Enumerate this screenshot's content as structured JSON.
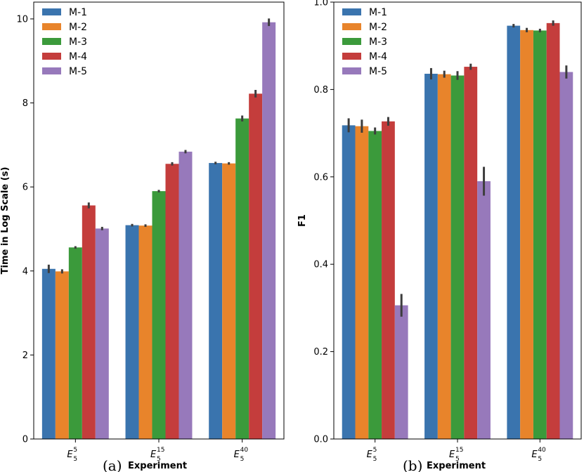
{
  "chart_data": [
    {
      "type": "bar",
      "panel_label": "(a)",
      "xlabel": "Experiment",
      "ylabel": "Time in Log Scale (s)",
      "ylim": [
        0,
        10.4
      ],
      "yticks": [
        "0",
        "2",
        "4",
        "6",
        "8",
        "10"
      ],
      "categories": [
        {
          "base": "E",
          "sub": "5",
          "sup": "5"
        },
        {
          "base": "E",
          "sub": "5",
          "sup": "15"
        },
        {
          "base": "E",
          "sub": "5",
          "sup": "40"
        }
      ],
      "series": [
        {
          "name": "M-1",
          "color": "#3a74ae",
          "values": [
            4.05,
            5.09,
            6.57
          ],
          "err": [
            0.1,
            0.03,
            0.03
          ]
        },
        {
          "name": "M-2",
          "color": "#e8842b",
          "values": [
            3.99,
            5.08,
            6.56
          ],
          "err": [
            0.05,
            0.03,
            0.03
          ]
        },
        {
          "name": "M-3",
          "color": "#3b9a3b",
          "values": [
            4.56,
            5.9,
            7.63
          ],
          "err": [
            0.03,
            0.03,
            0.07
          ]
        },
        {
          "name": "M-4",
          "color": "#c43d3c",
          "values": [
            5.56,
            6.55,
            8.22
          ],
          "err": [
            0.07,
            0.04,
            0.09
          ]
        },
        {
          "name": "M-5",
          "color": "#9779bb",
          "values": [
            5.01,
            6.84,
            9.92
          ],
          "err": [
            0.04,
            0.04,
            0.09
          ]
        }
      ],
      "legend": "top-left",
      "grid": false
    },
    {
      "type": "bar",
      "panel_label": "(b)",
      "xlabel": "Experiment",
      "ylabel": "F1",
      "ylim": [
        0,
        1.0
      ],
      "yticks": [
        "0.0",
        "0.2",
        "0.4",
        "0.6",
        "0.8",
        "1.0"
      ],
      "categories": [
        {
          "base": "E",
          "sub": "5",
          "sup": "5"
        },
        {
          "base": "E",
          "sub": "5",
          "sup": "15"
        },
        {
          "base": "E",
          "sub": "5",
          "sup": "40"
        }
      ],
      "series": [
        {
          "name": "M-1",
          "color": "#3a74ae",
          "values": [
            0.718,
            0.836,
            0.946
          ],
          "err": [
            0.016,
            0.013,
            0.004
          ]
        },
        {
          "name": "M-2",
          "color": "#e8842b",
          "values": [
            0.716,
            0.835,
            0.936
          ],
          "err": [
            0.015,
            0.008,
            0.005
          ]
        },
        {
          "name": "M-3",
          "color": "#3b9a3b",
          "values": [
            0.705,
            0.832,
            0.935
          ],
          "err": [
            0.008,
            0.01,
            0.004
          ]
        },
        {
          "name": "M-4",
          "color": "#c43d3c",
          "values": [
            0.727,
            0.852,
            0.952
          ],
          "err": [
            0.01,
            0.007,
            0.006
          ]
        },
        {
          "name": "M-5",
          "color": "#9779bb",
          "values": [
            0.306,
            0.59,
            0.84
          ],
          "err": [
            0.026,
            0.033,
            0.015
          ]
        }
      ],
      "legend": "top-left",
      "grid": false
    }
  ]
}
